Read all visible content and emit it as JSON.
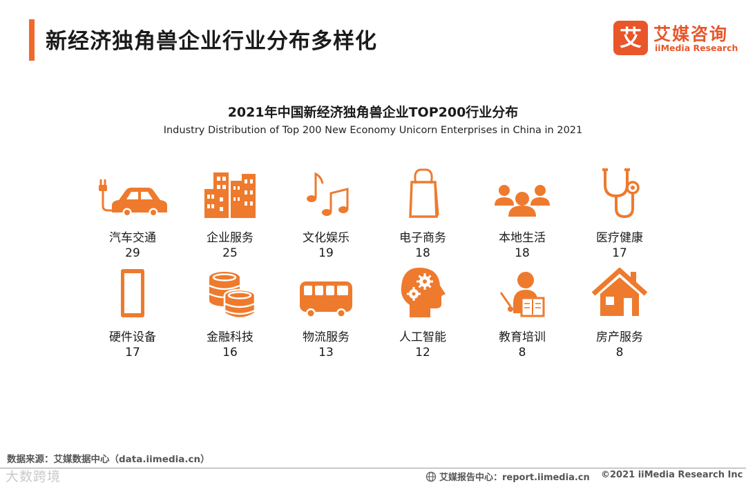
{
  "header": {
    "title": "新经济独角兽企业行业分布多样化",
    "brand_badge": "艾",
    "brand_cn": "艾媒咨询",
    "brand_en": "iiMedia Research"
  },
  "chart_data": {
    "type": "table",
    "title": "2021年中国新经济独角兽企业TOP200行业分布",
    "subtitle": "Industry Distribution of Top 200 New Economy Unicorn Enterprises in China in 2021",
    "items": [
      {
        "category": "汽车交通",
        "value": 29,
        "icon": "car-charging-icon"
      },
      {
        "category": "企业服务",
        "value": 25,
        "icon": "buildings-icon"
      },
      {
        "category": "文化娱乐",
        "value": 19,
        "icon": "music-notes-icon"
      },
      {
        "category": "电子商务",
        "value": 18,
        "icon": "shopping-bag-icon"
      },
      {
        "category": "本地生活",
        "value": 18,
        "icon": "people-group-icon"
      },
      {
        "category": "医疗健康",
        "value": 17,
        "icon": "stethoscope-icon"
      },
      {
        "category": "硬件设备",
        "value": 17,
        "icon": "phone-icon"
      },
      {
        "category": "金融科技",
        "value": 16,
        "icon": "coins-icon"
      },
      {
        "category": "物流服务",
        "value": 13,
        "icon": "bus-icon"
      },
      {
        "category": "人工智能",
        "value": 12,
        "icon": "brain-gears-icon"
      },
      {
        "category": "教育培训",
        "value": 8,
        "icon": "teacher-icon"
      },
      {
        "category": "房产服务",
        "value": 8,
        "icon": "house-icon"
      }
    ],
    "accent_color": "#ee7a2d"
  },
  "footer": {
    "source": "数据来源：艾媒数据中心（data.iimedia.cn）",
    "report": "艾媒报告中心：report.iimedia.cn",
    "copyright": "©2021  iiMedia Research  Inc",
    "watermark": "大数跨境"
  }
}
